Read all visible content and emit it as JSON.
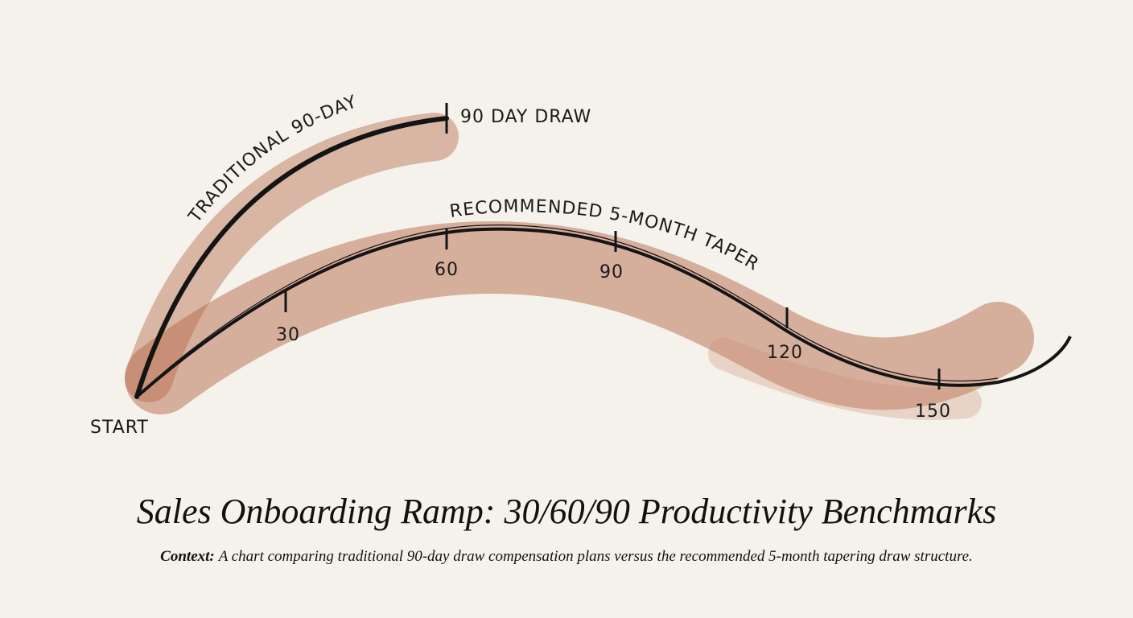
{
  "diagram": {
    "traditional": {
      "label": "TRADITIONAL 90-DAY",
      "end_label": "90 DAY DRAW"
    },
    "recommended": {
      "label": "RECOMMENDED 5-MONTH TAPER",
      "markers": [
        "30",
        "60",
        "90",
        "120",
        "150"
      ]
    },
    "start_label": "START"
  },
  "title": "Sales Onboarding Ramp: 30/60/90 Productivity Benchmarks",
  "context": {
    "label": "Context:",
    "text": "A chart comparing traditional 90-day draw compensation plans versus the recommended 5-month tapering draw structure."
  }
}
